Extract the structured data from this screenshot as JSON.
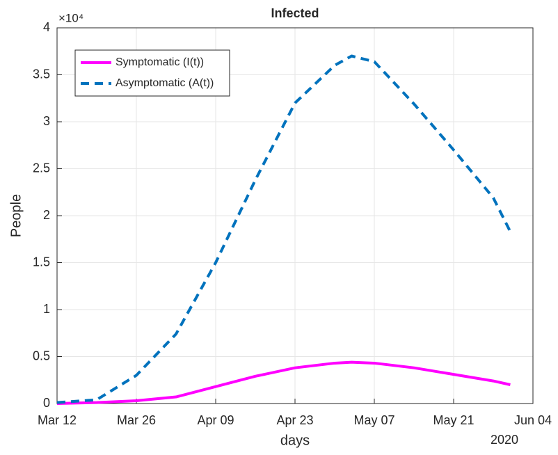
{
  "chart_data": {
    "type": "line",
    "title": "Infected",
    "xlabel": "days",
    "ylabel": "People",
    "y_exponent_label": "×10⁴",
    "x_secondary_label": "2020",
    "x": [
      "2020-03-12",
      "2020-03-19",
      "2020-03-26",
      "2020-04-02",
      "2020-04-09",
      "2020-04-16",
      "2020-04-23",
      "2020-04-30",
      "2020-05-03",
      "2020-05-07",
      "2020-05-14",
      "2020-05-21",
      "2020-05-28",
      "2020-05-31"
    ],
    "series": [
      {
        "name": "Symptomatic (I(t))",
        "color": "#ff00ff",
        "dash": false,
        "values": [
          0,
          0.01,
          0.03,
          0.07,
          0.18,
          0.29,
          0.38,
          0.43,
          0.44,
          0.43,
          0.38,
          0.31,
          0.24,
          0.2
        ]
      },
      {
        "name": "Asymptomatic (A(t))",
        "color": "#0072bd",
        "dash": true,
        "values": [
          0.01,
          0.04,
          0.3,
          0.74,
          1.5,
          2.38,
          3.2,
          3.6,
          3.7,
          3.64,
          3.19,
          2.7,
          2.19,
          1.83
        ]
      }
    ],
    "xlim": [
      "2020-03-12",
      "2020-06-04"
    ],
    "xticks": [
      {
        "value": "2020-03-12",
        "label": "Mar 12"
      },
      {
        "value": "2020-03-26",
        "label": "Mar 26"
      },
      {
        "value": "2020-04-09",
        "label": "Apr 09"
      },
      {
        "value": "2020-04-23",
        "label": "Apr 23"
      },
      {
        "value": "2020-05-07",
        "label": "May 07"
      },
      {
        "value": "2020-05-21",
        "label": "May 21"
      },
      {
        "value": "2020-06-04",
        "label": "Jun 04"
      }
    ],
    "ylim": [
      0,
      4
    ],
    "yticks": [
      0,
      0.5,
      1,
      1.5,
      2,
      2.5,
      3,
      3.5,
      4
    ],
    "grid": true,
    "legend_position": "upper left"
  }
}
